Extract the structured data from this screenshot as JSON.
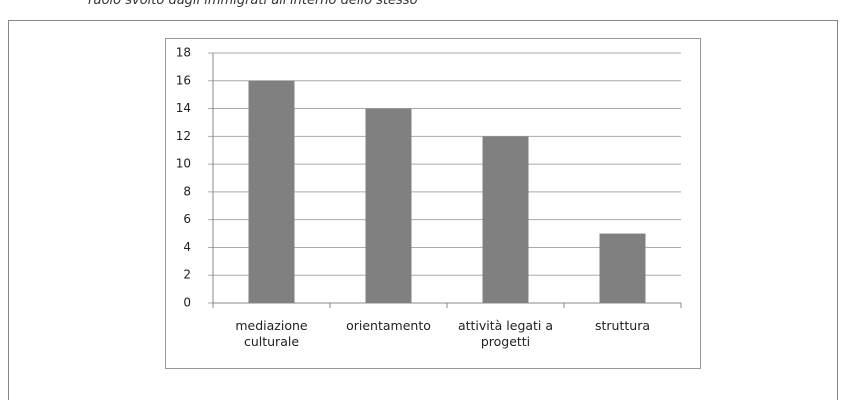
{
  "text": "ruolo svolto dagli immigrati all'interno dello stesso",
  "chart_data": {
    "type": "bar",
    "categories": [
      "mediazione culturale",
      "orientamento",
      "attività legati a progetti",
      "struttura"
    ],
    "values": [
      16,
      14,
      12,
      5
    ],
    "color": "#808080",
    "ylim": [
      0,
      18
    ],
    "yticks": [
      0,
      2,
      4,
      6,
      8,
      10,
      12,
      14,
      16,
      18
    ],
    "grid": true
  }
}
